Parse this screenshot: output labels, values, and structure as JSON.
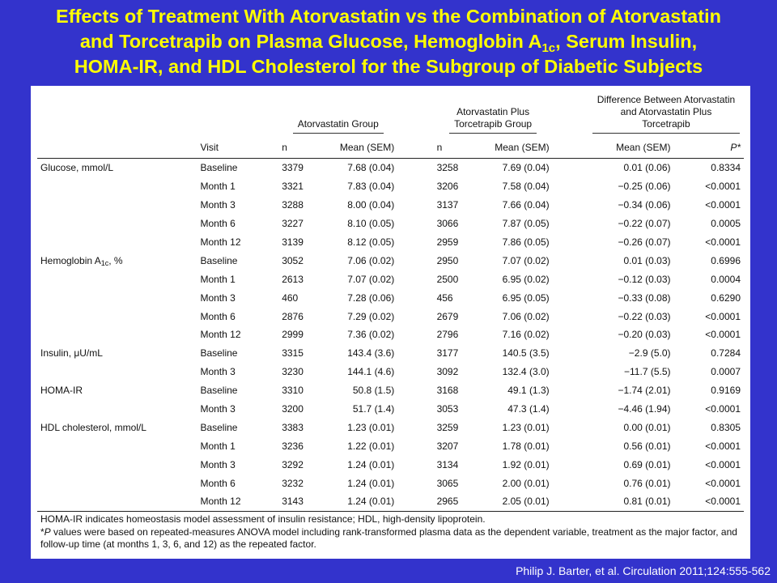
{
  "title": {
    "line1": "Effects of Treatment With Atorvastatin vs the Combination of Atorvastatin",
    "line2a": "and Torcetrapib on Plasma Glucose, Hemoglobin A",
    "line2sub": "1c",
    "line2b": ", Serum Insulin,",
    "line3": "HOMA-IR, and HDL Cholesterol for the Subgroup of Diabetic Subjects"
  },
  "table": {
    "groups": {
      "atorvastatin": "Atorvastatin Group",
      "combo_line1": "Atorvastatin Plus",
      "combo_line2": "Torcetrapib Group",
      "diff_line1": "Difference Between Atorvastatin",
      "diff_line2": "and Atorvastatin Plus",
      "diff_line3": "Torcetrapib"
    },
    "columns": {
      "visit": "Visit",
      "n1": "n",
      "mean1": "Mean (SEM)",
      "n2": "n",
      "mean2": "Mean (SEM)",
      "diff_mean": "Mean (SEM)",
      "p": "P*"
    },
    "rows": [
      {
        "variable": "Glucose, mmol/L",
        "visit": "Baseline",
        "n1": "3379",
        "mean1": "7.68 (0.04)",
        "n2": "3258",
        "mean2": "7.69 (0.04)",
        "diff": "0.01 (0.06)",
        "p": "0.8334"
      },
      {
        "variable": "",
        "visit": "Month 1",
        "n1": "3321",
        "mean1": "7.83 (0.04)",
        "n2": "3206",
        "mean2": "7.58 (0.04)",
        "diff": "−0.25 (0.06)",
        "p": "<0.0001"
      },
      {
        "variable": "",
        "visit": "Month 3",
        "n1": "3288",
        "mean1": "8.00 (0.04)",
        "n2": "3137",
        "mean2": "7.66 (0.04)",
        "diff": "−0.34 (0.06)",
        "p": "<0.0001"
      },
      {
        "variable": "",
        "visit": "Month 6",
        "n1": "3227",
        "mean1": "8.10 (0.05)",
        "n2": "3066",
        "mean2": "7.87 (0.05)",
        "diff": "−0.22 (0.07)",
        "p": "0.0005"
      },
      {
        "variable": "",
        "visit": "Month 12",
        "n1": "3139",
        "mean1": "8.12 (0.05)",
        "n2": "2959",
        "mean2": "7.86 (0.05)",
        "diff": "−0.26 (0.07)",
        "p": "<0.0001"
      },
      {
        "variable": "Hemoglobin A",
        "variable_sub": "1c",
        "variable_suffix": ", %",
        "visit": "Baseline",
        "n1": "3052",
        "mean1": "7.06 (0.02)",
        "n2": "2950",
        "mean2": "7.07 (0.02)",
        "diff": "0.01 (0.03)",
        "p": "0.6996"
      },
      {
        "variable": "",
        "visit": "Month 1",
        "n1": "2613",
        "mean1": "7.07 (0.02)",
        "n2": "2500",
        "mean2": "6.95 (0.02)",
        "diff": "−0.12 (0.03)",
        "p": "0.0004"
      },
      {
        "variable": "",
        "visit": "Month 3",
        "n1": "460",
        "mean1": "7.28 (0.06)",
        "n2": "456",
        "mean2": "6.95 (0.05)",
        "diff": "−0.33 (0.08)",
        "p": "0.6290"
      },
      {
        "variable": "",
        "visit": "Month 6",
        "n1": "2876",
        "mean1": "7.29 (0.02)",
        "n2": "2679",
        "mean2": "7.06 (0.02)",
        "diff": "−0.22 (0.03)",
        "p": "<0.0001"
      },
      {
        "variable": "",
        "visit": "Month 12",
        "n1": "2999",
        "mean1": "7.36 (0.02)",
        "n2": "2796",
        "mean2": "7.16 (0.02)",
        "diff": "−0.20 (0.03)",
        "p": "<0.0001"
      },
      {
        "variable": "Insulin, μU/mL",
        "visit": "Baseline",
        "n1": "3315",
        "mean1": "143.4 (3.6)",
        "n2": "3177",
        "mean2": "140.5 (3.5)",
        "diff": "−2.9 (5.0)",
        "p": "0.7284"
      },
      {
        "variable": "",
        "visit": "Month 3",
        "n1": "3230",
        "mean1": "144.1 (4.6)",
        "n2": "3092",
        "mean2": "132.4 (3.0)",
        "diff": "−11.7 (5.5)",
        "p": "0.0007"
      },
      {
        "variable": "HOMA-IR",
        "visit": "Baseline",
        "n1": "3310",
        "mean1": "50.8 (1.5)",
        "n2": "3168",
        "mean2": "49.1 (1.3)",
        "diff": "−1.74 (2.01)",
        "p": "0.9169"
      },
      {
        "variable": "",
        "visit": "Month 3",
        "n1": "3200",
        "mean1": "51.7 (1.4)",
        "n2": "3053",
        "mean2": "47.3 (1.4)",
        "diff": "−4.46 (1.94)",
        "p": "<0.0001"
      },
      {
        "variable": "HDL cholesterol, mmol/L",
        "visit": "Baseline",
        "n1": "3383",
        "mean1": "1.23 (0.01)",
        "n2": "3259",
        "mean2": "1.23 (0.01)",
        "diff": "0.00 (0.01)",
        "p": "0.8305"
      },
      {
        "variable": "",
        "visit": "Month 1",
        "n1": "3236",
        "mean1": "1.22 (0.01)",
        "n2": "3207",
        "mean2": "1.78 (0.01)",
        "diff": "0.56 (0.01)",
        "p": "<0.0001"
      },
      {
        "variable": "",
        "visit": "Month 3",
        "n1": "3292",
        "mean1": "1.24 (0.01)",
        "n2": "3134",
        "mean2": "1.92 (0.01)",
        "diff": "0.69 (0.01)",
        "p": "<0.0001"
      },
      {
        "variable": "",
        "visit": "Month 6",
        "n1": "3232",
        "mean1": "1.24 (0.01)",
        "n2": "3065",
        "mean2": "2.00 (0.01)",
        "diff": "0.76 (0.01)",
        "p": "<0.0001"
      },
      {
        "variable": "",
        "visit": "Month 12",
        "n1": "3143",
        "mean1": "1.24 (0.01)",
        "n2": "2965",
        "mean2": "2.05 (0.01)",
        "diff": "0.81 (0.01)",
        "p": "<0.0001"
      }
    ],
    "footnotes": {
      "line1": "HOMA-IR indicates homeostasis model assessment of insulin resistance; HDL, high-density lipoprotein.",
      "line2_prefix": "*",
      "line2_p": "P",
      "line2_rest": " values were based on repeated-measures ANOVA model including rank-transformed plasma data as the dependent variable, treatment as the major factor, and follow-up time (at months 1, 3, 6, and 12) as the repeated factor."
    }
  },
  "source": "Philip J. Barter, et al. Circulation 2011;124:555-562"
}
